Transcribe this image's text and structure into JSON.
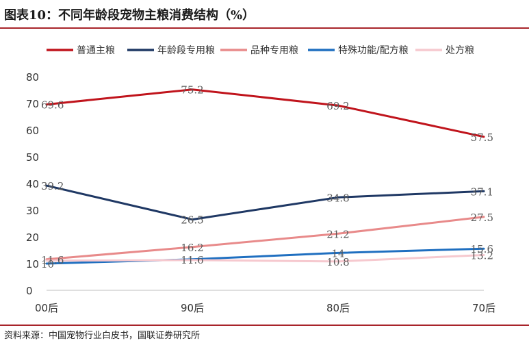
{
  "header": {
    "title": "图表10：不同年龄段宠物主粮消费结构（%）"
  },
  "footer": {
    "source": "资料来源：中国宠物行业白皮书，国联证券研究所"
  },
  "chart_data": {
    "type": "line",
    "categories": [
      "00后",
      "90后",
      "80后",
      "70后"
    ],
    "ylim": [
      0,
      80
    ],
    "yticks": [
      0,
      10,
      20,
      30,
      40,
      50,
      60,
      70,
      80
    ],
    "grid": false,
    "legend_position": "top",
    "series": [
      {
        "name": "普通主粮",
        "color": "#c0141c",
        "values": [
          69.6,
          75.2,
          69.2,
          57.5
        ],
        "labels": [
          "69.6",
          "75.2",
          "69.2",
          "57.5"
        ]
      },
      {
        "name": "年龄段专用粮",
        "color": "#1f3864",
        "values": [
          39.2,
          26.5,
          34.8,
          37.1
        ],
        "labels": [
          "39.2",
          "26.5",
          "34.8",
          "37.1"
        ]
      },
      {
        "name": "品种专用粮",
        "color": "#e88a8a",
        "values": [
          11.6,
          16.2,
          21.2,
          27.5
        ],
        "labels": [
          "11.6",
          "16.2",
          "21.2",
          "27.5"
        ]
      },
      {
        "name": "特殊功能/配方粮",
        "color": "#1f6fc0",
        "values": [
          10,
          11.6,
          14,
          15.6
        ],
        "labels": [
          "10",
          "11.6",
          "14",
          "15.6"
        ]
      },
      {
        "name": "处方粮",
        "color": "#f6c9cf",
        "values": [
          11.1,
          11.3,
          10.8,
          13.2
        ],
        "labels": [
          "",
          "",
          "10.8",
          "13.2"
        ]
      }
    ]
  }
}
